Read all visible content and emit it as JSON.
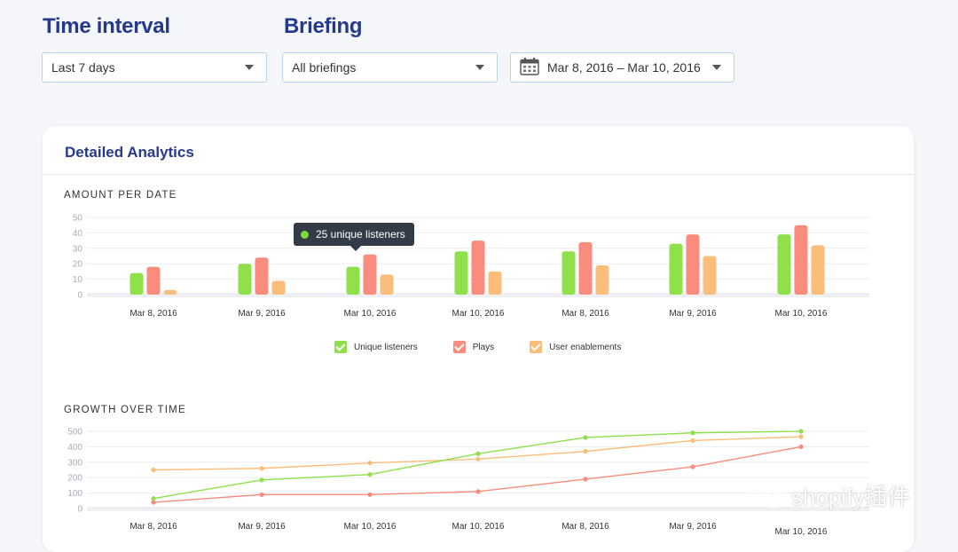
{
  "filters": {
    "time_interval_label": "Time interval",
    "time_interval_value": "Last 7 days",
    "briefing_label": "Briefing",
    "briefing_value": "All briefings",
    "date_range_value": "Mar 8, 2016 – Mar 10, 2016",
    "date_icon": "calendar-icon"
  },
  "card": {
    "title": "Detailed Analytics",
    "section1_title": "AMOUNT PER DATE",
    "section2_title": "GROWTH OVER TIME"
  },
  "tooltip": {
    "text": "25 unique listeners"
  },
  "legend": [
    {
      "label": "Unique listeners",
      "color": "#8fe04a"
    },
    {
      "label": "Plays",
      "color": "#f98c7c"
    },
    {
      "label": "User enablements",
      "color": "#fbbd7a"
    }
  ],
  "watermark": {
    "text": "shopify插件"
  },
  "chart_data": [
    {
      "type": "bar",
      "title": "AMOUNT PER DATE",
      "categories": [
        "Mar 8, 2016",
        "Mar 9, 2016",
        "Mar 10, 2016",
        "Mar 10, 2016",
        "Mar 8, 2016",
        "Mar 9, 2016",
        "Mar 10, 2016"
      ],
      "yticks": [
        0,
        10,
        20,
        30,
        40,
        50
      ],
      "ylim": [
        0,
        50
      ],
      "grid": true,
      "legend": "bottom",
      "series": [
        {
          "name": "Unique listeners",
          "color": "#8fe04a",
          "values": [
            14,
            20,
            18,
            28,
            28,
            33,
            39
          ]
        },
        {
          "name": "Plays",
          "color": "#f98c7c",
          "values": [
            18,
            24,
            26,
            35,
            34,
            39,
            45
          ]
        },
        {
          "name": "User enablements",
          "color": "#fbbd7a",
          "values": [
            3,
            9,
            13,
            15,
            19,
            25,
            32
          ]
        }
      ]
    },
    {
      "type": "line",
      "title": "GROWTH OVER TIME",
      "categories": [
        "Mar 8, 2016",
        "Mar 9, 2016",
        "Mar 10, 2016",
        "Mar 10, 2016",
        "Mar 8, 2016",
        "Mar 9, 2016",
        "Mar 10, 2016"
      ],
      "yticks": [
        0,
        100,
        200,
        300,
        400,
        500
      ],
      "ylim": [
        0,
        500
      ],
      "grid": true,
      "series": [
        {
          "name": "Unique listeners",
          "color": "#8fe04a",
          "values": [
            65,
            185,
            220,
            355,
            460,
            490,
            500
          ]
        },
        {
          "name": "Plays",
          "color": "#f98c7c",
          "values": [
            40,
            90,
            90,
            110,
            190,
            270,
            400
          ]
        },
        {
          "name": "User enablements",
          "color": "#fbbd7a",
          "values": [
            250,
            260,
            295,
            320,
            370,
            440,
            465
          ]
        }
      ]
    }
  ]
}
